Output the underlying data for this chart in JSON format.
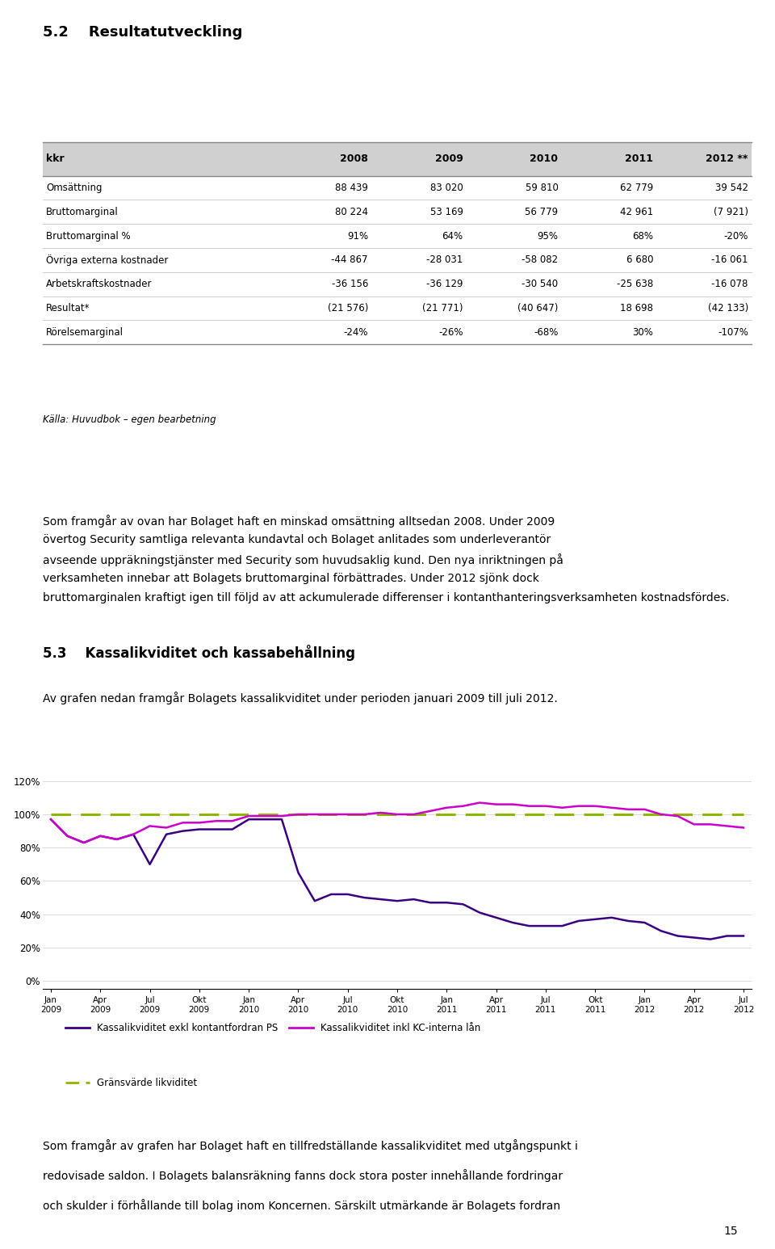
{
  "title_section": "5.2    Resultatutveckling",
  "table_header": [
    "kkr",
    "2008",
    "2009",
    "2010",
    "2011",
    "2012 **"
  ],
  "table_rows": [
    [
      "Omsättning",
      "88 439",
      "83 020",
      "59 810",
      "62 779",
      "39 542"
    ],
    [
      "Bruttomarginal",
      "80 224",
      "53 169",
      "56 779",
      "42 961",
      "(7 921)"
    ],
    [
      "Bruttomarginal %",
      "91%",
      "64%",
      "95%",
      "68%",
      "-20%"
    ],
    [
      "Övriga externa kostnader",
      "-44 867",
      "-28 031",
      "-58 082",
      "6 680",
      "-16 061"
    ],
    [
      "Arbetskraftskostnader",
      "-36 156",
      "-36 129",
      "-30 540",
      "-25 638",
      "-16 078"
    ],
    [
      "Resultat*",
      "(21 576)",
      "(21 771)",
      "(40 647)",
      "18 698",
      "(42 133)"
    ],
    [
      "Rörelsemarginal",
      "-24%",
      "-26%",
      "-68%",
      "30%",
      "-107%"
    ]
  ],
  "source_note": "Källa: Huvudbok – egen bearbetning",
  "section53_title": "5.3    Kassalikviditet och kassabehållning",
  "paragraph2": "Av grafen nedan framgår Bolagets kassalikviditet under perioden januari 2009 till juli 2012.",
  "chart_xlabel_ticks": [
    "Jan\n2009",
    "Apr\n2009",
    "Jul\n2009",
    "Okt\n2009",
    "Jan\n2010",
    "Apr\n2010",
    "Jul\n2010",
    "Okt\n2010",
    "Jan\n2011",
    "Apr\n2011",
    "Jul\n2011",
    "Okt\n2011",
    "Jan\n2012",
    "Apr\n2012",
    "Jul\n2012"
  ],
  "chart_yticks": [
    "0%",
    "20%",
    "40%",
    "60%",
    "80%",
    "100%",
    "120%"
  ],
  "chart_ytick_vals": [
    0,
    20,
    40,
    60,
    80,
    100,
    120
  ],
  "line1_color": "#3B0080",
  "line2_color": "#CC00CC",
  "dashed_color": "#8DB600",
  "legend1": "Kassalikviditet exkl kontantfordran PS",
  "legend2": "Kassalikviditet inkl KC-interna lån",
  "legend3": "Gränsvärde likviditet",
  "page_number": "15",
  "p1_lines": [
    "Som framgår av ovan har Bolaget haft en minskad omsättning alltsedan 2008. Under 2009",
    "övertog Security samtliga relevanta kundavtal och Bolaget anlitades som underleverantör",
    "avseende uppräkningstjänster med Security som huvudsaklig kund. Den nya inriktningen på",
    "verksamheten innebar att Bolagets bruttomarginal förbättrades. Under 2012 sjönk dock",
    "bruttomarginalen kraftigt igen till följd av att ackumulerade differenser i kontanthanteringsverksamheten kostnadsfördes."
  ],
  "p3_lines": [
    "Som framgår av grafen har Bolaget haft en tillfredställande kassalikviditet med utgångspunkt i",
    "redovisade saldon. I Bolagets balansräkning fanns dock stora poster innehållande fordringar",
    "och skulder i förhållande till bolag inom Koncernen. Särskilt utmärkande är Bolagets fordran"
  ]
}
